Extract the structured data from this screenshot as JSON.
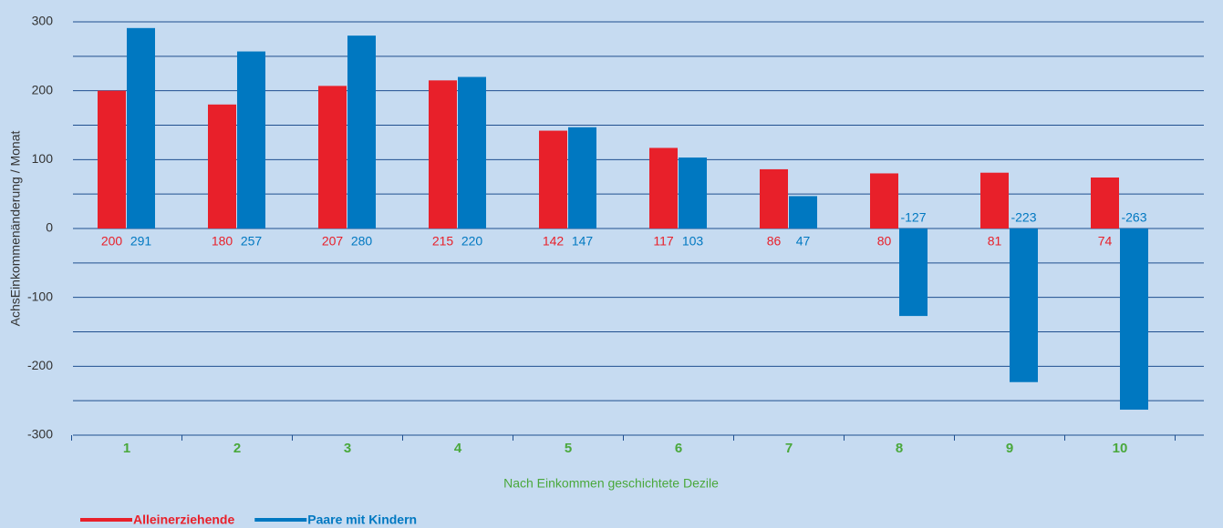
{
  "chart_data": {
    "type": "bar",
    "y_label": "AchsEinkommenänderung / Monat",
    "x_label": "Nach Einkommen geschichtete Dezile",
    "categories": [
      "1",
      "2",
      "3",
      "4",
      "5",
      "6",
      "7",
      "8",
      "9",
      "10"
    ],
    "series": [
      {
        "name": "Alleinerziehende",
        "color": "#e8202a",
        "values": [
          200,
          180,
          207,
          215,
          142,
          117,
          86,
          80,
          81,
          74
        ]
      },
      {
        "name": "Paare mit Kindern",
        "color": "#0078c1",
        "values": [
          291,
          257,
          280,
          220,
          147,
          103,
          47,
          -127,
          -223,
          -263
        ]
      }
    ],
    "ylim": [
      -300,
      300
    ],
    "yticks": [
      -300,
      -200,
      -100,
      0,
      100,
      200,
      300
    ],
    "y_minor_ticks": [
      -250,
      -150,
      -50,
      50,
      150,
      250
    ],
    "grid": true,
    "legend": "bottom-left"
  }
}
